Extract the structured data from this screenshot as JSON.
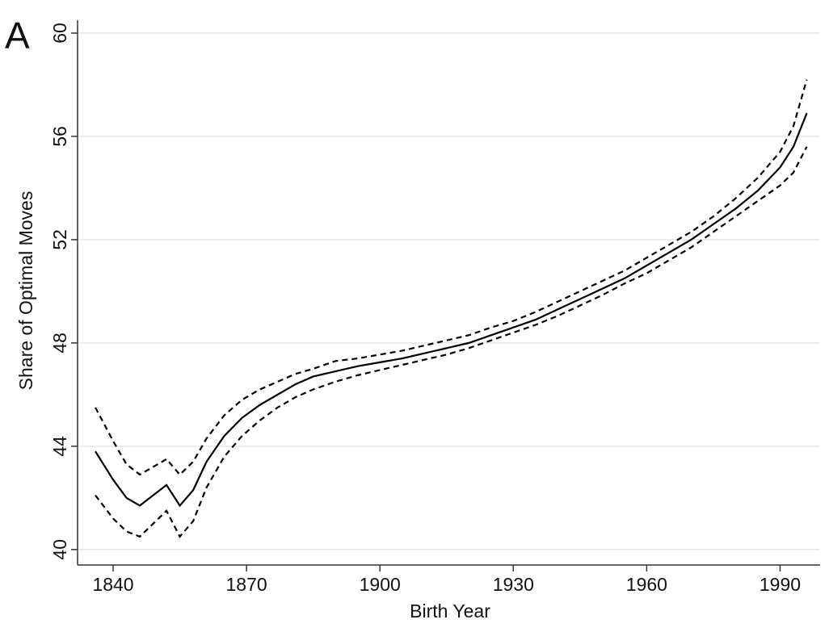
{
  "panel_label": "A",
  "chart_data": {
    "type": "line",
    "xlabel": "Birth Year",
    "ylabel": "Share of Optimal Moves",
    "x": [
      1836,
      1840,
      1843,
      1846,
      1849,
      1852,
      1855,
      1858,
      1861,
      1865,
      1869,
      1873,
      1877,
      1881,
      1885,
      1890,
      1895,
      1900,
      1905,
      1910,
      1915,
      1920,
      1925,
      1930,
      1935,
      1940,
      1945,
      1950,
      1955,
      1960,
      1965,
      1970,
      1975,
      1980,
      1985,
      1990,
      1993,
      1996
    ],
    "series": [
      {
        "color": "#000000",
        "style": "solid",
        "values": [
          43.8,
          42.7,
          42.0,
          41.7,
          42.1,
          42.5,
          41.7,
          42.3,
          43.4,
          44.4,
          45.1,
          45.6,
          46.0,
          46.4,
          46.7,
          46.9,
          47.1,
          47.25,
          47.4,
          47.6,
          47.8,
          48.0,
          48.3,
          48.6,
          48.9,
          49.3,
          49.7,
          50.1,
          50.5,
          51.0,
          51.5,
          52.0,
          52.6,
          53.2,
          53.9,
          54.8,
          55.6,
          56.9
        ]
      },
      {
        "color": "#000000",
        "style": "dashed",
        "values": [
          45.5,
          44.2,
          43.3,
          42.9,
          43.2,
          43.5,
          42.9,
          43.4,
          44.3,
          45.2,
          45.8,
          46.2,
          46.5,
          46.8,
          47.0,
          47.3,
          47.4,
          47.55,
          47.7,
          47.9,
          48.1,
          48.3,
          48.6,
          48.85,
          49.2,
          49.6,
          50.0,
          50.4,
          50.8,
          51.3,
          51.8,
          52.3,
          52.9,
          53.6,
          54.4,
          55.4,
          56.4,
          58.2
        ]
      },
      {
        "color": "#000000",
        "style": "dashed",
        "values": [
          42.1,
          41.2,
          40.7,
          40.5,
          41.0,
          41.5,
          40.5,
          41.1,
          42.4,
          43.6,
          44.4,
          45.0,
          45.5,
          45.9,
          46.2,
          46.5,
          46.75,
          46.95,
          47.15,
          47.35,
          47.55,
          47.8,
          48.1,
          48.4,
          48.7,
          49.05,
          49.45,
          49.85,
          50.3,
          50.7,
          51.2,
          51.7,
          52.3,
          52.9,
          53.5,
          54.1,
          54.6,
          55.6
        ]
      }
    ],
    "xlim": [
      1832,
      1999
    ],
    "xticks": [
      1840,
      1870,
      1900,
      1930,
      1960,
      1990
    ],
    "ylim": [
      39.4,
      60.5
    ],
    "yticks": [
      40,
      44,
      48,
      52,
      56,
      60
    ],
    "grid": true
  }
}
